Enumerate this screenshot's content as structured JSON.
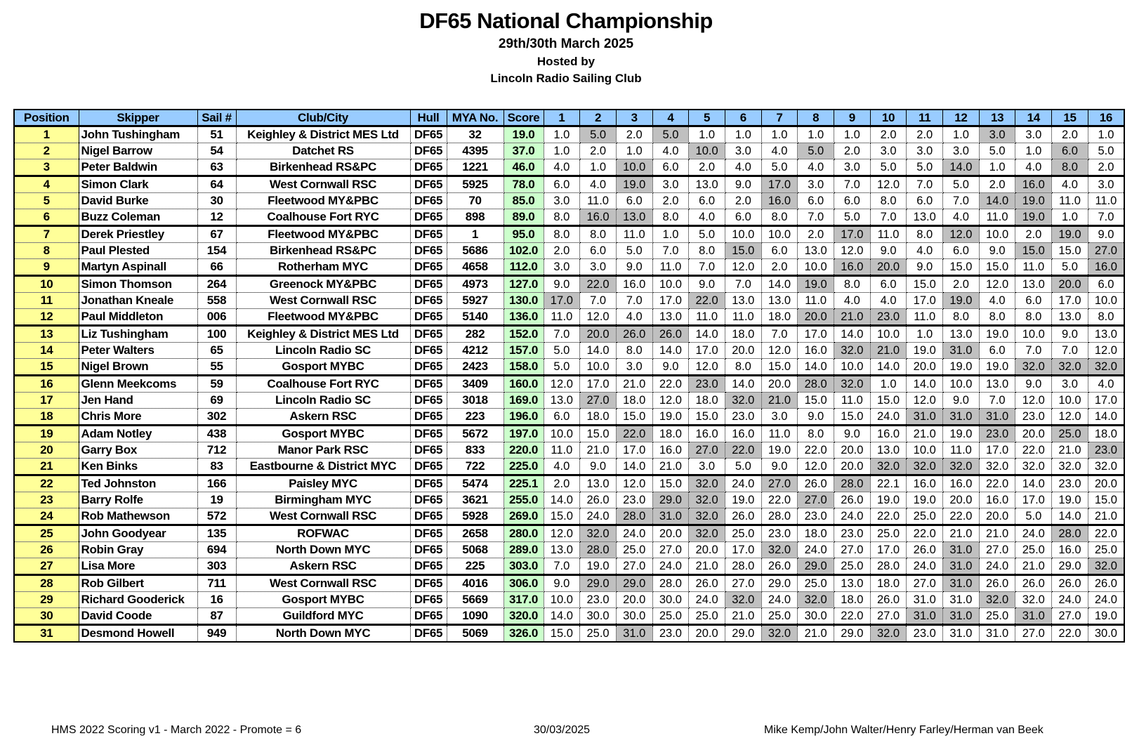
{
  "header": {
    "title": "DF65 National Championship",
    "dates": "29th/30th March 2025",
    "hosted_by": "Hosted by",
    "host_club": "Lincoln Radio Sailing Club"
  },
  "colors": {
    "header_bg": "#99ccff",
    "position_bg": "#ffff99",
    "score_bg": "#ccffcc",
    "discard_bg": "#c0c0c0"
  },
  "columns": [
    "Position",
    "Skipper",
    "Sail #",
    "Club/City",
    "Hull",
    "MYA No.",
    "Score",
    "1",
    "2",
    "3",
    "4",
    "5",
    "6",
    "7",
    "8",
    "9",
    "10",
    "11",
    "12",
    "13",
    "14",
    "15",
    "16"
  ],
  "rows": [
    {
      "pos": "1",
      "skipper": "John Tushingham",
      "sail": "51",
      "club": "Keighley & District MES Ltd",
      "hull": "DF65",
      "mya": "32",
      "score": "19.0",
      "races": [
        "1.0",
        "5.0",
        "2.0",
        "5.0",
        "1.0",
        "1.0",
        "1.0",
        "1.0",
        "1.0",
        "2.0",
        "2.0",
        "1.0",
        "3.0",
        "3.0",
        "2.0",
        "1.0"
      ],
      "discards": [
        2,
        4,
        13
      ]
    },
    {
      "pos": "2",
      "skipper": "Nigel Barrow",
      "sail": "54",
      "club": "Datchet RS",
      "hull": "DF65",
      "mya": "4395",
      "score": "37.0",
      "races": [
        "1.0",
        "2.0",
        "1.0",
        "4.0",
        "10.0",
        "3.0",
        "4.0",
        "5.0",
        "2.0",
        "3.0",
        "3.0",
        "3.0",
        "5.0",
        "1.0",
        "6.0",
        "5.0"
      ],
      "discards": [
        5,
        8,
        15
      ]
    },
    {
      "pos": "3",
      "skipper": "Peter Baldwin",
      "sail": "63",
      "club": "Birkenhead RS&PC",
      "hull": "DF65",
      "mya": "1221",
      "score": "46.0",
      "races": [
        "4.0",
        "1.0",
        "10.0",
        "6.0",
        "2.0",
        "4.0",
        "5.0",
        "4.0",
        "3.0",
        "5.0",
        "5.0",
        "14.0",
        "1.0",
        "4.0",
        "8.0",
        "2.0"
      ],
      "discards": [
        3,
        12,
        15
      ]
    },
    {
      "pos": "4",
      "skipper": "Simon Clark",
      "sail": "64",
      "club": "West Cornwall RSC",
      "hull": "DF65",
      "mya": "5925",
      "score": "78.0",
      "races": [
        "6.0",
        "4.0",
        "19.0",
        "3.0",
        "13.0",
        "9.0",
        "17.0",
        "3.0",
        "7.0",
        "12.0",
        "7.0",
        "5.0",
        "2.0",
        "16.0",
        "4.0",
        "3.0"
      ],
      "discards": [
        3,
        7,
        14
      ]
    },
    {
      "pos": "5",
      "skipper": "David Burke",
      "sail": "30",
      "club": "Fleetwood MY&PBC",
      "hull": "DF65",
      "mya": "70",
      "score": "85.0",
      "races": [
        "3.0",
        "11.0",
        "6.0",
        "2.0",
        "6.0",
        "2.0",
        "16.0",
        "6.0",
        "6.0",
        "8.0",
        "6.0",
        "7.0",
        "14.0",
        "19.0",
        "11.0",
        "11.0"
      ],
      "discards": [
        7,
        13,
        14
      ]
    },
    {
      "pos": "6",
      "skipper": "Buzz Coleman",
      "sail": "12",
      "club": "Coalhouse Fort RYC",
      "hull": "DF65",
      "mya": "898",
      "score": "89.0",
      "races": [
        "8.0",
        "16.0",
        "13.0",
        "8.0",
        "4.0",
        "6.0",
        "8.0",
        "7.0",
        "5.0",
        "7.0",
        "13.0",
        "4.0",
        "11.0",
        "19.0",
        "1.0",
        "7.0"
      ],
      "discards": [
        2,
        3,
        14
      ]
    },
    {
      "pos": "7",
      "skipper": "Derek Priestley",
      "sail": "67",
      "club": "Fleetwood MY&PBC",
      "hull": "DF65",
      "mya": "1",
      "score": "95.0",
      "races": [
        "8.0",
        "8.0",
        "11.0",
        "1.0",
        "5.0",
        "10.0",
        "10.0",
        "2.0",
        "17.0",
        "11.0",
        "8.0",
        "12.0",
        "10.0",
        "2.0",
        "19.0",
        "9.0"
      ],
      "discards": [
        9,
        12,
        15
      ]
    },
    {
      "pos": "8",
      "skipper": "Paul Plested",
      "sail": "154",
      "club": "Birkenhead RS&PC",
      "hull": "DF65",
      "mya": "5686",
      "score": "102.0",
      "races": [
        "2.0",
        "6.0",
        "5.0",
        "7.0",
        "8.0",
        "15.0",
        "6.0",
        "13.0",
        "12.0",
        "9.0",
        "4.0",
        "6.0",
        "9.0",
        "15.0",
        "15.0",
        "27.0"
      ],
      "discards": [
        6,
        14,
        16
      ]
    },
    {
      "pos": "9",
      "skipper": "Martyn Aspinall",
      "sail": "66",
      "club": "Rotherham MYC",
      "hull": "DF65",
      "mya": "4658",
      "score": "112.0",
      "races": [
        "3.0",
        "3.0",
        "9.0",
        "11.0",
        "7.0",
        "12.0",
        "2.0",
        "10.0",
        "16.0",
        "20.0",
        "9.0",
        "15.0",
        "15.0",
        "11.0",
        "5.0",
        "16.0"
      ],
      "discards": [
        9,
        10,
        16
      ]
    },
    {
      "pos": "10",
      "skipper": "Simon Thomson",
      "sail": "264",
      "club": "Greenock MY&PBC",
      "hull": "DF65",
      "mya": "4973",
      "score": "127.0",
      "races": [
        "9.0",
        "22.0",
        "16.0",
        "10.0",
        "9.0",
        "7.0",
        "14.0",
        "19.0",
        "8.0",
        "6.0",
        "15.0",
        "2.0",
        "12.0",
        "13.0",
        "20.0",
        "6.0"
      ],
      "discards": [
        2,
        8,
        15
      ]
    },
    {
      "pos": "11",
      "skipper": "Jonathan Kneale",
      "sail": "558",
      "club": "West Cornwall RSC",
      "hull": "DF65",
      "mya": "5927",
      "score": "130.0",
      "races": [
        "17.0",
        "7.0",
        "7.0",
        "17.0",
        "22.0",
        "13.0",
        "13.0",
        "11.0",
        "4.0",
        "4.0",
        "17.0",
        "19.0",
        "4.0",
        "6.0",
        "17.0",
        "10.0"
      ],
      "discards": [
        1,
        5,
        12
      ]
    },
    {
      "pos": "12",
      "skipper": "Paul Middleton",
      "sail": "006",
      "club": "Fleetwood MY&PBC",
      "hull": "DF65",
      "mya": "5140",
      "score": "136.0",
      "races": [
        "11.0",
        "12.0",
        "4.0",
        "13.0",
        "11.0",
        "11.0",
        "18.0",
        "20.0",
        "21.0",
        "23.0",
        "11.0",
        "8.0",
        "8.0",
        "8.0",
        "13.0",
        "8.0"
      ],
      "discards": [
        8,
        9,
        10
      ]
    },
    {
      "pos": "13",
      "skipper": "Liz Tushingham",
      "sail": "100",
      "club": "Keighley & District MES Ltd",
      "hull": "DF65",
      "mya": "282",
      "score": "152.0",
      "races": [
        "7.0",
        "20.0",
        "26.0",
        "26.0",
        "14.0",
        "18.0",
        "7.0",
        "17.0",
        "14.0",
        "10.0",
        "1.0",
        "13.0",
        "19.0",
        "10.0",
        "9.0",
        "13.0"
      ],
      "discards": [
        2,
        3,
        4
      ]
    },
    {
      "pos": "14",
      "skipper": "Peter Walters",
      "sail": "65",
      "club": "Lincoln Radio SC",
      "hull": "DF65",
      "mya": "4212",
      "score": "157.0",
      "races": [
        "5.0",
        "14.0",
        "8.0",
        "14.0",
        "17.0",
        "20.0",
        "12.0",
        "16.0",
        "32.0",
        "21.0",
        "19.0",
        "31.0",
        "6.0",
        "7.0",
        "7.0",
        "12.0"
      ],
      "discards": [
        9,
        10,
        12
      ]
    },
    {
      "pos": "15",
      "skipper": "Nigel Brown",
      "sail": "55",
      "club": "Gosport MYBC",
      "hull": "DF65",
      "mya": "2423",
      "score": "158.0",
      "races": [
        "5.0",
        "10.0",
        "3.0",
        "9.0",
        "12.0",
        "8.0",
        "15.0",
        "14.0",
        "10.0",
        "14.0",
        "20.0",
        "19.0",
        "19.0",
        "32.0",
        "32.0",
        "32.0"
      ],
      "discards": [
        14,
        15,
        16
      ]
    },
    {
      "pos": "16",
      "skipper": "Glenn Meekcoms",
      "sail": "59",
      "club": "Coalhouse Fort RYC",
      "hull": "DF65",
      "mya": "3409",
      "score": "160.0",
      "races": [
        "12.0",
        "17.0",
        "21.0",
        "22.0",
        "23.0",
        "14.0",
        "20.0",
        "28.0",
        "32.0",
        "1.0",
        "14.0",
        "10.0",
        "13.0",
        "9.0",
        "3.0",
        "4.0"
      ],
      "discards": [
        5,
        8,
        9
      ]
    },
    {
      "pos": "17",
      "skipper": "Jen Hand",
      "sail": "69",
      "club": "Lincoln Radio SC",
      "hull": "DF65",
      "mya": "3018",
      "score": "169.0",
      "races": [
        "13.0",
        "27.0",
        "18.0",
        "12.0",
        "18.0",
        "32.0",
        "21.0",
        "15.0",
        "11.0",
        "15.0",
        "12.0",
        "9.0",
        "7.0",
        "12.0",
        "10.0",
        "17.0"
      ],
      "discards": [
        2,
        6,
        7
      ]
    },
    {
      "pos": "18",
      "skipper": "Chris More",
      "sail": "302",
      "club": "Askern RSC",
      "hull": "DF65",
      "mya": "223",
      "score": "196.0",
      "races": [
        "6.0",
        "18.0",
        "15.0",
        "19.0",
        "15.0",
        "23.0",
        "3.0",
        "9.0",
        "15.0",
        "24.0",
        "31.0",
        "31.0",
        "31.0",
        "23.0",
        "12.0",
        "14.0"
      ],
      "discards": [
        11,
        12,
        13
      ]
    },
    {
      "pos": "19",
      "skipper": "Adam Notley",
      "sail": "438",
      "club": "Gosport MYBC",
      "hull": "DF65",
      "mya": "5672",
      "score": "197.0",
      "races": [
        "10.0",
        "15.0",
        "22.0",
        "18.0",
        "16.0",
        "16.0",
        "11.0",
        "8.0",
        "9.0",
        "16.0",
        "21.0",
        "19.0",
        "23.0",
        "20.0",
        "25.0",
        "18.0"
      ],
      "discards": [
        3,
        13,
        15
      ]
    },
    {
      "pos": "20",
      "skipper": "Garry Box",
      "sail": "712",
      "club": "Manor Park RSC",
      "hull": "DF65",
      "mya": "833",
      "score": "220.0",
      "races": [
        "11.0",
        "21.0",
        "17.0",
        "16.0",
        "27.0",
        "22.0",
        "19.0",
        "22.0",
        "20.0",
        "13.0",
        "10.0",
        "11.0",
        "17.0",
        "22.0",
        "21.0",
        "23.0"
      ],
      "discards": [
        5,
        6,
        16
      ]
    },
    {
      "pos": "21",
      "skipper": "Ken Binks",
      "sail": "83",
      "club": "Eastbourne & District MYC",
      "hull": "DF65",
      "mya": "722",
      "score": "225.0",
      "races": [
        "4.0",
        "9.0",
        "14.0",
        "21.0",
        "3.0",
        "5.0",
        "9.0",
        "12.0",
        "20.0",
        "32.0",
        "32.0",
        "32.0",
        "32.0",
        "32.0",
        "32.0",
        "32.0"
      ],
      "discards": [
        10,
        11,
        12
      ]
    },
    {
      "pos": "22",
      "skipper": "Ted Johnston",
      "sail": "166",
      "club": "Paisley MYC",
      "hull": "DF65",
      "mya": "5474",
      "score": "225.1",
      "races": [
        "2.0",
        "13.0",
        "12.0",
        "15.0",
        "32.0",
        "24.0",
        "27.0",
        "26.0",
        "28.0",
        "22.1",
        "16.0",
        "16.0",
        "22.0",
        "14.0",
        "23.0",
        "20.0"
      ],
      "discards": [
        5,
        7,
        9
      ]
    },
    {
      "pos": "23",
      "skipper": "Barry Rolfe",
      "sail": "19",
      "club": "Birmingham MYC",
      "hull": "DF65",
      "mya": "3621",
      "score": "255.0",
      "races": [
        "14.0",
        "26.0",
        "23.0",
        "29.0",
        "32.0",
        "19.0",
        "22.0",
        "27.0",
        "26.0",
        "19.0",
        "19.0",
        "20.0",
        "16.0",
        "17.0",
        "19.0",
        "15.0"
      ],
      "discards": [
        4,
        5,
        8
      ]
    },
    {
      "pos": "24",
      "skipper": "Rob Mathewson",
      "sail": "572",
      "club": "West Cornwall RSC",
      "hull": "DF65",
      "mya": "5928",
      "score": "269.0",
      "races": [
        "15.0",
        "24.0",
        "28.0",
        "31.0",
        "32.0",
        "26.0",
        "28.0",
        "23.0",
        "24.0",
        "22.0",
        "25.0",
        "22.0",
        "20.0",
        "5.0",
        "14.0",
        "21.0"
      ],
      "discards": [
        3,
        4,
        5
      ]
    },
    {
      "pos": "25",
      "skipper": "John Goodyear",
      "sail": "135",
      "club": "ROFWAC",
      "hull": "DF65",
      "mya": "2658",
      "score": "280.0",
      "races": [
        "12.0",
        "32.0",
        "24.0",
        "20.0",
        "32.0",
        "25.0",
        "23.0",
        "18.0",
        "23.0",
        "25.0",
        "22.0",
        "21.0",
        "21.0",
        "24.0",
        "28.0",
        "22.0"
      ],
      "discards": [
        2,
        5,
        15
      ]
    },
    {
      "pos": "26",
      "skipper": "Robin Gray",
      "sail": "694",
      "club": "North Down MYC",
      "hull": "DF65",
      "mya": "5068",
      "score": "289.0",
      "races": [
        "13.0",
        "28.0",
        "25.0",
        "27.0",
        "20.0",
        "17.0",
        "32.0",
        "24.0",
        "27.0",
        "17.0",
        "26.0",
        "31.0",
        "27.0",
        "25.0",
        "16.0",
        "25.0"
      ],
      "discards": [
        2,
        7,
        12
      ]
    },
    {
      "pos": "27",
      "skipper": "Lisa More",
      "sail": "303",
      "club": "Askern RSC",
      "hull": "DF65",
      "mya": "225",
      "score": "303.0",
      "races": [
        "7.0",
        "19.0",
        "27.0",
        "24.0",
        "21.0",
        "28.0",
        "26.0",
        "29.0",
        "25.0",
        "28.0",
        "24.0",
        "31.0",
        "24.0",
        "21.0",
        "29.0",
        "32.0"
      ],
      "discards": [
        8,
        12,
        16
      ]
    },
    {
      "pos": "28",
      "skipper": "Rob Gilbert",
      "sail": "711",
      "club": "West Cornwall RSC",
      "hull": "DF65",
      "mya": "4016",
      "score": "306.0",
      "races": [
        "9.0",
        "29.0",
        "29.0",
        "28.0",
        "26.0",
        "27.0",
        "29.0",
        "25.0",
        "13.0",
        "18.0",
        "27.0",
        "31.0",
        "26.0",
        "26.0",
        "26.0",
        "26.0"
      ],
      "discards": [
        2,
        3,
        12
      ]
    },
    {
      "pos": "29",
      "skipper": "Richard Gooderick",
      "sail": "16",
      "club": "Gosport MYBC",
      "hull": "DF65",
      "mya": "5669",
      "score": "317.0",
      "races": [
        "10.0",
        "23.0",
        "20.0",
        "30.0",
        "24.0",
        "32.0",
        "24.0",
        "32.0",
        "18.0",
        "26.0",
        "31.0",
        "31.0",
        "32.0",
        "32.0",
        "24.0",
        "24.0"
      ],
      "discards": [
        6,
        8,
        13
      ]
    },
    {
      "pos": "30",
      "skipper": "David Coode",
      "sail": "87",
      "club": "Guildford MYC",
      "hull": "DF65",
      "mya": "1090",
      "score": "320.0",
      "races": [
        "14.0",
        "30.0",
        "30.0",
        "25.0",
        "25.0",
        "21.0",
        "25.0",
        "30.0",
        "22.0",
        "27.0",
        "31.0",
        "31.0",
        "25.0",
        "31.0",
        "27.0",
        "19.0"
      ],
      "discards": [
        11,
        12,
        14
      ]
    },
    {
      "pos": "31",
      "skipper": "Desmond Howell",
      "sail": "949",
      "club": "North Down MYC",
      "hull": "DF65",
      "mya": "5069",
      "score": "326.0",
      "races": [
        "15.0",
        "25.0",
        "31.0",
        "23.0",
        "20.0",
        "29.0",
        "32.0",
        "21.0",
        "29.0",
        "32.0",
        "23.0",
        "31.0",
        "31.0",
        "27.0",
        "22.0",
        "30.0"
      ],
      "discards": [
        3,
        7,
        10
      ]
    }
  ],
  "footer": {
    "left": "HMS 2022 Scoring v1 - March 2022 - Promote = 6",
    "center": "30/03/2025",
    "right": "Mike Kemp/John Walter/Henry Farley/Herman van Beek"
  }
}
